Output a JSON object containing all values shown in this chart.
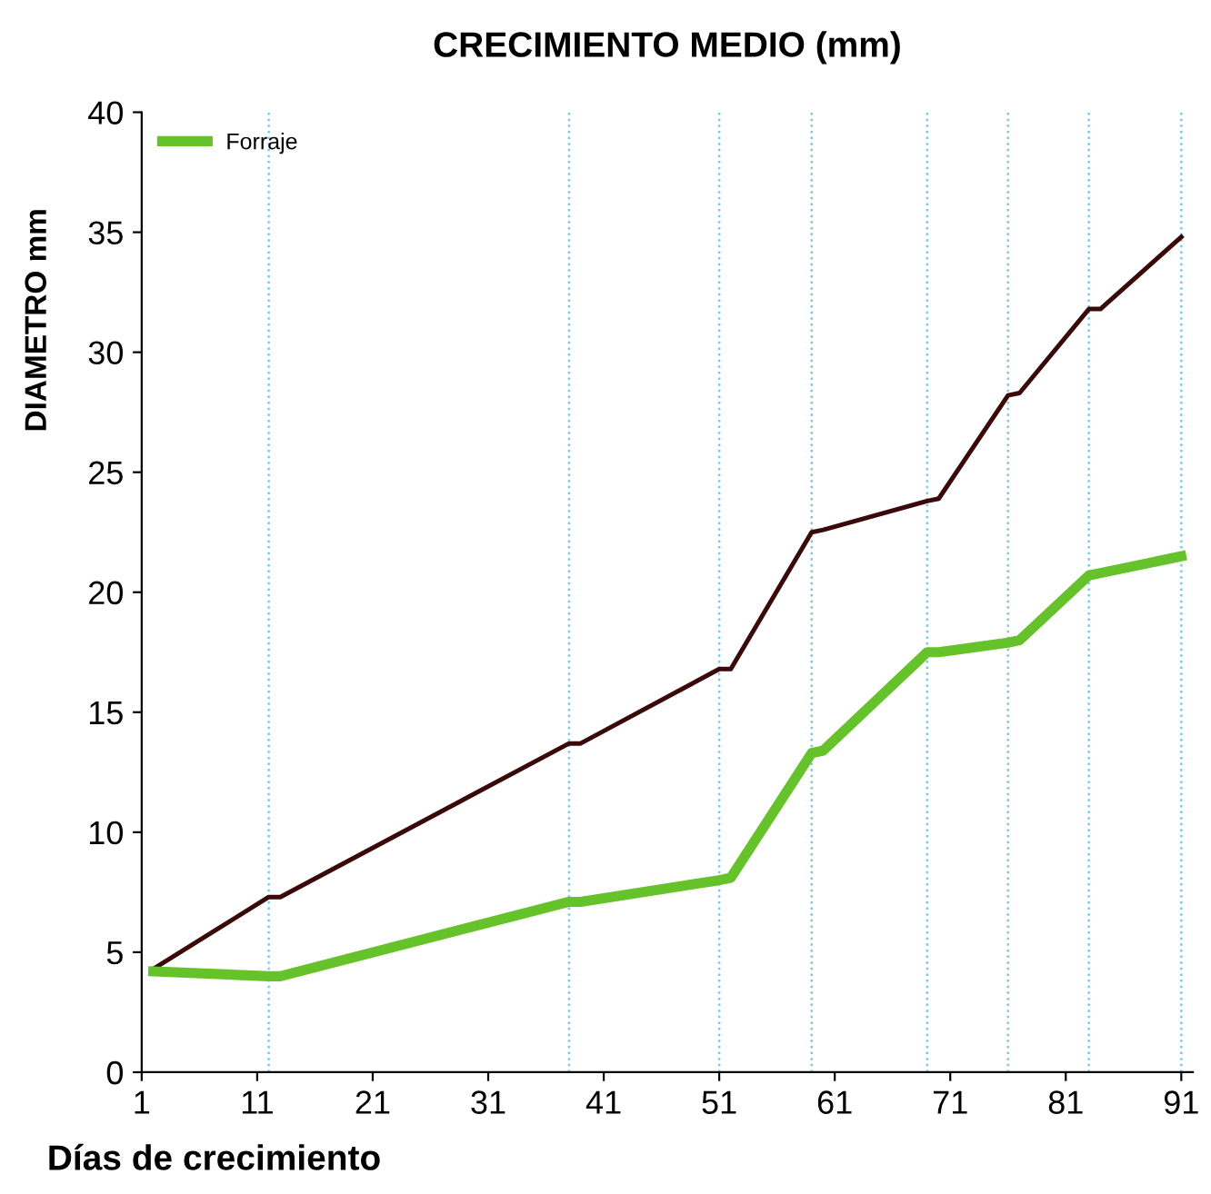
{
  "chart_data": {
    "type": "line",
    "title": "CRECIMIENTO MEDIO (mm)",
    "xlabel": "Días de crecimiento",
    "ylabel": "DIAMETRO mm",
    "x": [
      2,
      12,
      13,
      38,
      39,
      51,
      52,
      59,
      60,
      69,
      70,
      76,
      77,
      83,
      84,
      91
    ],
    "series": [
      {
        "color": "#3a0a0a",
        "values": [
          4.3,
          7.3,
          7.3,
          13.7,
          13.7,
          16.8,
          16.8,
          22.5,
          22.6,
          23.8,
          23.9,
          28.2,
          28.3,
          31.8,
          31.8,
          34.8
        ]
      },
      {
        "name": "Forraje",
        "color": "#66c22a",
        "values": [
          4.2,
          4.0,
          4.0,
          7.1,
          7.1,
          8.0,
          8.1,
          13.3,
          13.4,
          17.5,
          17.5,
          17.9,
          18.0,
          20.7,
          20.8,
          21.5
        ]
      }
    ],
    "xlim": [
      1,
      92
    ],
    "xticks": [
      1,
      11,
      21,
      31,
      41,
      51,
      61,
      71,
      81,
      91
    ],
    "ylim": [
      0,
      40
    ],
    "yticks": [
      0,
      5,
      10,
      15,
      20,
      25,
      30,
      35,
      40
    ],
    "ref_lines": [
      {
        "axis": "x",
        "value": 12,
        "color": "#7fc8e0",
        "line_style": "dotted"
      },
      {
        "axis": "x",
        "value": 38,
        "color": "#7fc8e0",
        "line_style": "dotted"
      },
      {
        "axis": "x",
        "value": 51,
        "color": "#7fc8e0",
        "line_style": "dotted"
      },
      {
        "axis": "x",
        "value": 59,
        "color": "#7fc8e0",
        "line_style": "dotted"
      },
      {
        "axis": "x",
        "value": 69,
        "color": "#7fc8e0",
        "line_style": "dotted"
      },
      {
        "axis": "x",
        "value": 76,
        "color": "#7fc8e0",
        "line_style": "dotted"
      },
      {
        "axis": "x",
        "value": 83,
        "color": "#7fc8e0",
        "line_style": "dotted"
      },
      {
        "axis": "x",
        "value": 91,
        "color": "#7fc8e0",
        "line_style": "dotted"
      }
    ],
    "grid": false,
    "legend": "top left",
    "marker": "none",
    "line_style": "solid"
  }
}
